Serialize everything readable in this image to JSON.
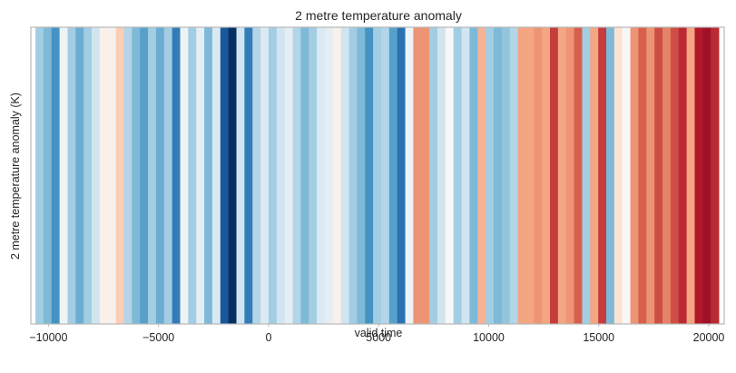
{
  "chart_data": {
    "type": "heatmap",
    "title": "2 metre temperature anomaly",
    "xlabel": "valid time",
    "ylabel": "2 metre temperature anomaly (K)",
    "xlim": [
      -10800,
      20700
    ],
    "xticks": [
      -10000,
      -5000,
      0,
      5000,
      10000,
      15000,
      20000
    ],
    "xtick_labels": [
      "−10000",
      "−5000",
      "0",
      "5000",
      "10000",
      "15000",
      "20000"
    ],
    "stripe_width_days": 365.25,
    "colormap": "RdBu_r",
    "clim": [
      -1,
      1
    ],
    "grid": false,
    "legend": "none",
    "x_start": -10592,
    "values": [
      -0.35,
      -0.45,
      -0.6,
      -0.05,
      -0.35,
      -0.5,
      -0.35,
      -0.2,
      0.05,
      0.05,
      0.25,
      -0.3,
      -0.45,
      -0.55,
      -0.35,
      -0.5,
      -0.35,
      -0.7,
      -0.05,
      -0.35,
      -0.1,
      -0.45,
      -0.15,
      -0.85,
      -1.0,
      -0.2,
      -0.7,
      -0.3,
      -0.15,
      -0.35,
      -0.2,
      -0.1,
      -0.3,
      -0.45,
      -0.35,
      -0.15,
      -0.1,
      0.05,
      -0.2,
      -0.35,
      -0.45,
      -0.6,
      -0.35,
      -0.3,
      -0.55,
      -0.75,
      -0.05,
      0.45,
      0.45,
      -0.35,
      -0.2,
      0.0,
      -0.35,
      -0.2,
      -0.45,
      0.35,
      -0.35,
      -0.45,
      -0.4,
      -0.3,
      0.4,
      0.4,
      0.45,
      0.4,
      0.7,
      0.4,
      0.45,
      0.6,
      -0.35,
      0.4,
      0.7,
      -0.45,
      0.15,
      0.0,
      0.45,
      0.6,
      0.45,
      0.65,
      0.5,
      0.65,
      0.75,
      0.4,
      0.8,
      0.85,
      0.75
    ]
  }
}
